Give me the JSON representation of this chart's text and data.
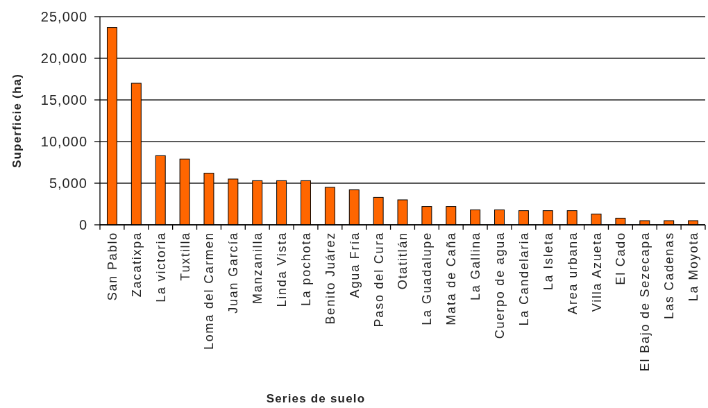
{
  "chart_data": {
    "type": "bar",
    "xlabel": "Series de suelo",
    "ylabel": "Superficie (ha)",
    "categories": [
      "San Pablo",
      "Zacatixpa",
      "La victoria",
      "Tuxtilla",
      "Loma del Carmen",
      "Juan García",
      "Manzanilla",
      "Linda Vista",
      "La pochota",
      "Benito Juárez",
      "Agua Fría",
      "Paso del Cura",
      "Otatitlán",
      "La Guadalupe",
      "Mata de Caña",
      "La Gallina",
      "Cuerpo de agua",
      "La Candelaria",
      "La Isleta",
      "Area urbana",
      "Villa Azueta",
      "El Cado",
      "El Bajo de Sezecapa",
      "Las Cadenas",
      "La Moyota"
    ],
    "values": [
      23700,
      17000,
      8300,
      7900,
      6200,
      5500,
      5300,
      5300,
      5300,
      4500,
      4200,
      3300,
      3000,
      2200,
      2200,
      1800,
      1800,
      1700,
      1700,
      1700,
      1300,
      800,
      500,
      500,
      500
    ],
    "color": "#ff6600",
    "ylim": [
      0,
      25000
    ],
    "yticks": [
      0,
      {
        "value": 5000,
        "label": "5,000"
      },
      {
        "value": 10000,
        "label": "10,000"
      },
      {
        "value": 15000,
        "label": "15,000"
      },
      {
        "value": 20000,
        "label": "20,000"
      },
      {
        "value": 25000,
        "label": "25,000"
      }
    ],
    "grid": "y"
  }
}
